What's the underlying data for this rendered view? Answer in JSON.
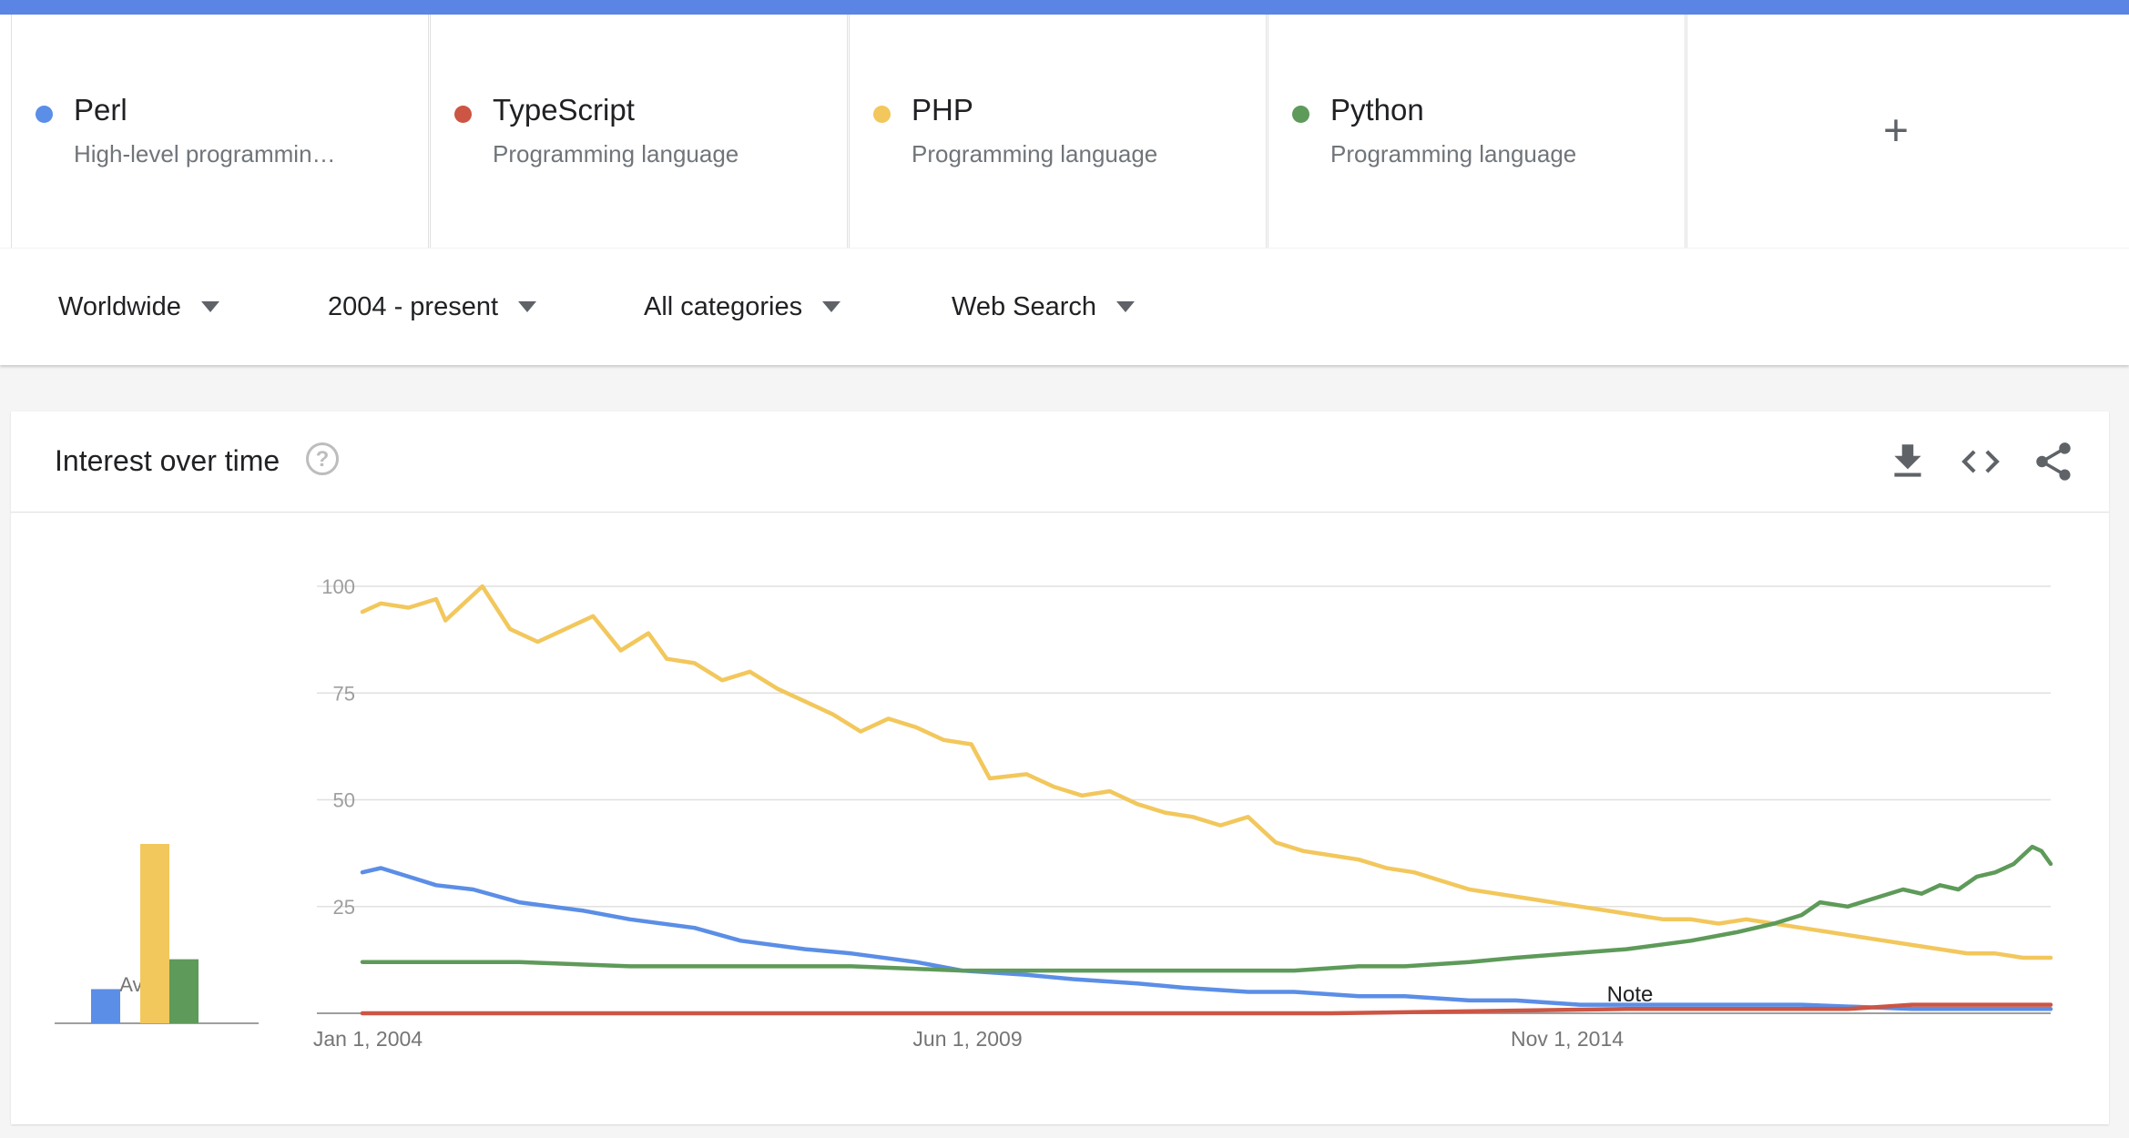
{
  "terms": [
    {
      "name": "Perl",
      "description": "High-level programmin…",
      "color": "#5b8ee6"
    },
    {
      "name": "TypeScript",
      "description": "Programming language",
      "color": "#cc5544"
    },
    {
      "name": "PHP",
      "description": "Programming language",
      "color": "#f2c75c"
    },
    {
      "name": "Python",
      "description": "Programming language",
      "color": "#5e9a59"
    }
  ],
  "add_term_symbol": "+",
  "filters": [
    {
      "label": "Worldwide"
    },
    {
      "label": "2004 - present"
    },
    {
      "label": "All categories"
    },
    {
      "label": "Web Search"
    }
  ],
  "card": {
    "title": "Interest over time",
    "help_symbol": "?",
    "icons": [
      "download-icon",
      "embed-code-icon",
      "share-icon"
    ]
  },
  "chart_data": {
    "type": "line",
    "x_ticks": [
      "Jan 1, 2004",
      "Jun 1, 2009",
      "Nov 1, 2014"
    ],
    "x_range": [
      "2004-01",
      "2019-04"
    ],
    "ylim": [
      0,
      100
    ],
    "y_ticks": [
      25,
      50,
      75,
      100
    ],
    "annotation": "Note",
    "average_label": "Average",
    "averages": [
      {
        "series": "Perl",
        "value": 8
      },
      {
        "series": "TypeScript",
        "value": 0
      },
      {
        "series": "PHP",
        "value": 42
      },
      {
        "series": "Python",
        "value": 15
      }
    ],
    "series": [
      {
        "name": "Perl",
        "color": "#5b8ee6",
        "points": [
          [
            "2004-01",
            33
          ],
          [
            "2004-03",
            34
          ],
          [
            "2004-06",
            32
          ],
          [
            "2004-09",
            30
          ],
          [
            "2005-01",
            29
          ],
          [
            "2005-06",
            26
          ],
          [
            "2006-01",
            24
          ],
          [
            "2006-06",
            22
          ],
          [
            "2007-01",
            20
          ],
          [
            "2007-06",
            17
          ],
          [
            "2008-01",
            15
          ],
          [
            "2008-06",
            14
          ],
          [
            "2009-01",
            12
          ],
          [
            "2009-06",
            10
          ],
          [
            "2010-01",
            9
          ],
          [
            "2010-06",
            8
          ],
          [
            "2011-01",
            7
          ],
          [
            "2011-06",
            6
          ],
          [
            "2012-01",
            5
          ],
          [
            "2012-06",
            5
          ],
          [
            "2013-01",
            4
          ],
          [
            "2013-06",
            4
          ],
          [
            "2014-01",
            3
          ],
          [
            "2014-06",
            3
          ],
          [
            "2015-01",
            2
          ],
          [
            "2016-01",
            2
          ],
          [
            "2017-01",
            2
          ],
          [
            "2018-01",
            1
          ],
          [
            "2019-04",
            1
          ]
        ]
      },
      {
        "name": "TypeScript",
        "color": "#cc5544",
        "points": [
          [
            "2004-01",
            0
          ],
          [
            "2012-10",
            0
          ],
          [
            "2015-06",
            1
          ],
          [
            "2016-06",
            1
          ],
          [
            "2017-06",
            1
          ],
          [
            "2018-01",
            2
          ],
          [
            "2018-06",
            2
          ],
          [
            "2019-04",
            2
          ]
        ]
      },
      {
        "name": "PHP",
        "color": "#f2c75c",
        "points": [
          [
            "2004-01",
            94
          ],
          [
            "2004-03",
            96
          ],
          [
            "2004-06",
            95
          ],
          [
            "2004-09",
            97
          ],
          [
            "2004-10",
            92
          ],
          [
            "2005-01",
            98
          ],
          [
            "2005-02",
            100
          ],
          [
            "2005-05",
            90
          ],
          [
            "2005-08",
            87
          ],
          [
            "2005-11",
            90
          ],
          [
            "2006-02",
            93
          ],
          [
            "2006-05",
            85
          ],
          [
            "2006-08",
            89
          ],
          [
            "2006-10",
            83
          ],
          [
            "2007-01",
            82
          ],
          [
            "2007-04",
            78
          ],
          [
            "2007-07",
            80
          ],
          [
            "2007-10",
            76
          ],
          [
            "2008-01",
            73
          ],
          [
            "2008-04",
            70
          ],
          [
            "2008-07",
            66
          ],
          [
            "2008-10",
            69
          ],
          [
            "2009-01",
            67
          ],
          [
            "2009-04",
            64
          ],
          [
            "2009-07",
            63
          ],
          [
            "2009-09",
            55
          ],
          [
            "2010-01",
            56
          ],
          [
            "2010-04",
            53
          ],
          [
            "2010-07",
            51
          ],
          [
            "2010-10",
            52
          ],
          [
            "2011-01",
            49
          ],
          [
            "2011-04",
            47
          ],
          [
            "2011-07",
            46
          ],
          [
            "2011-10",
            44
          ],
          [
            "2012-01",
            46
          ],
          [
            "2012-04",
            40
          ],
          [
            "2012-07",
            38
          ],
          [
            "2012-10",
            37
          ],
          [
            "2013-01",
            36
          ],
          [
            "2013-04",
            34
          ],
          [
            "2013-07",
            33
          ],
          [
            "2013-10",
            31
          ],
          [
            "2014-01",
            29
          ],
          [
            "2014-04",
            28
          ],
          [
            "2014-07",
            27
          ],
          [
            "2014-10",
            26
          ],
          [
            "2015-01",
            25
          ],
          [
            "2015-04",
            24
          ],
          [
            "2015-07",
            23
          ],
          [
            "2015-10",
            22
          ],
          [
            "2016-01",
            22
          ],
          [
            "2016-04",
            21
          ],
          [
            "2016-07",
            22
          ],
          [
            "2016-10",
            21
          ],
          [
            "2017-01",
            20
          ],
          [
            "2017-04",
            19
          ],
          [
            "2017-07",
            18
          ],
          [
            "2017-10",
            17
          ],
          [
            "2018-01",
            16
          ],
          [
            "2018-04",
            15
          ],
          [
            "2018-07",
            14
          ],
          [
            "2018-10",
            14
          ],
          [
            "2019-01",
            13
          ],
          [
            "2019-04",
            13
          ]
        ]
      },
      {
        "name": "Python",
        "color": "#5e9a59",
        "points": [
          [
            "2004-01",
            12
          ],
          [
            "2005-06",
            12
          ],
          [
            "2006-06",
            11
          ],
          [
            "2007-06",
            11
          ],
          [
            "2008-06",
            11
          ],
          [
            "2009-06",
            10
          ],
          [
            "2010-06",
            10
          ],
          [
            "2011-06",
            10
          ],
          [
            "2012-06",
            10
          ],
          [
            "2013-01",
            11
          ],
          [
            "2013-06",
            11
          ],
          [
            "2014-01",
            12
          ],
          [
            "2014-06",
            13
          ],
          [
            "2014-12",
            14
          ],
          [
            "2015-06",
            15
          ],
          [
            "2016-01",
            17
          ],
          [
            "2016-06",
            19
          ],
          [
            "2016-10",
            21
          ],
          [
            "2017-01",
            23
          ],
          [
            "2017-03",
            26
          ],
          [
            "2017-06",
            25
          ],
          [
            "2017-09",
            27
          ],
          [
            "2017-12",
            29
          ],
          [
            "2018-02",
            28
          ],
          [
            "2018-04",
            30
          ],
          [
            "2018-06",
            29
          ],
          [
            "2018-08",
            32
          ],
          [
            "2018-10",
            33
          ],
          [
            "2018-12",
            35
          ],
          [
            "2019-01",
            37
          ],
          [
            "2019-02",
            39
          ],
          [
            "2019-03",
            38
          ],
          [
            "2019-04",
            35
          ]
        ]
      }
    ]
  }
}
